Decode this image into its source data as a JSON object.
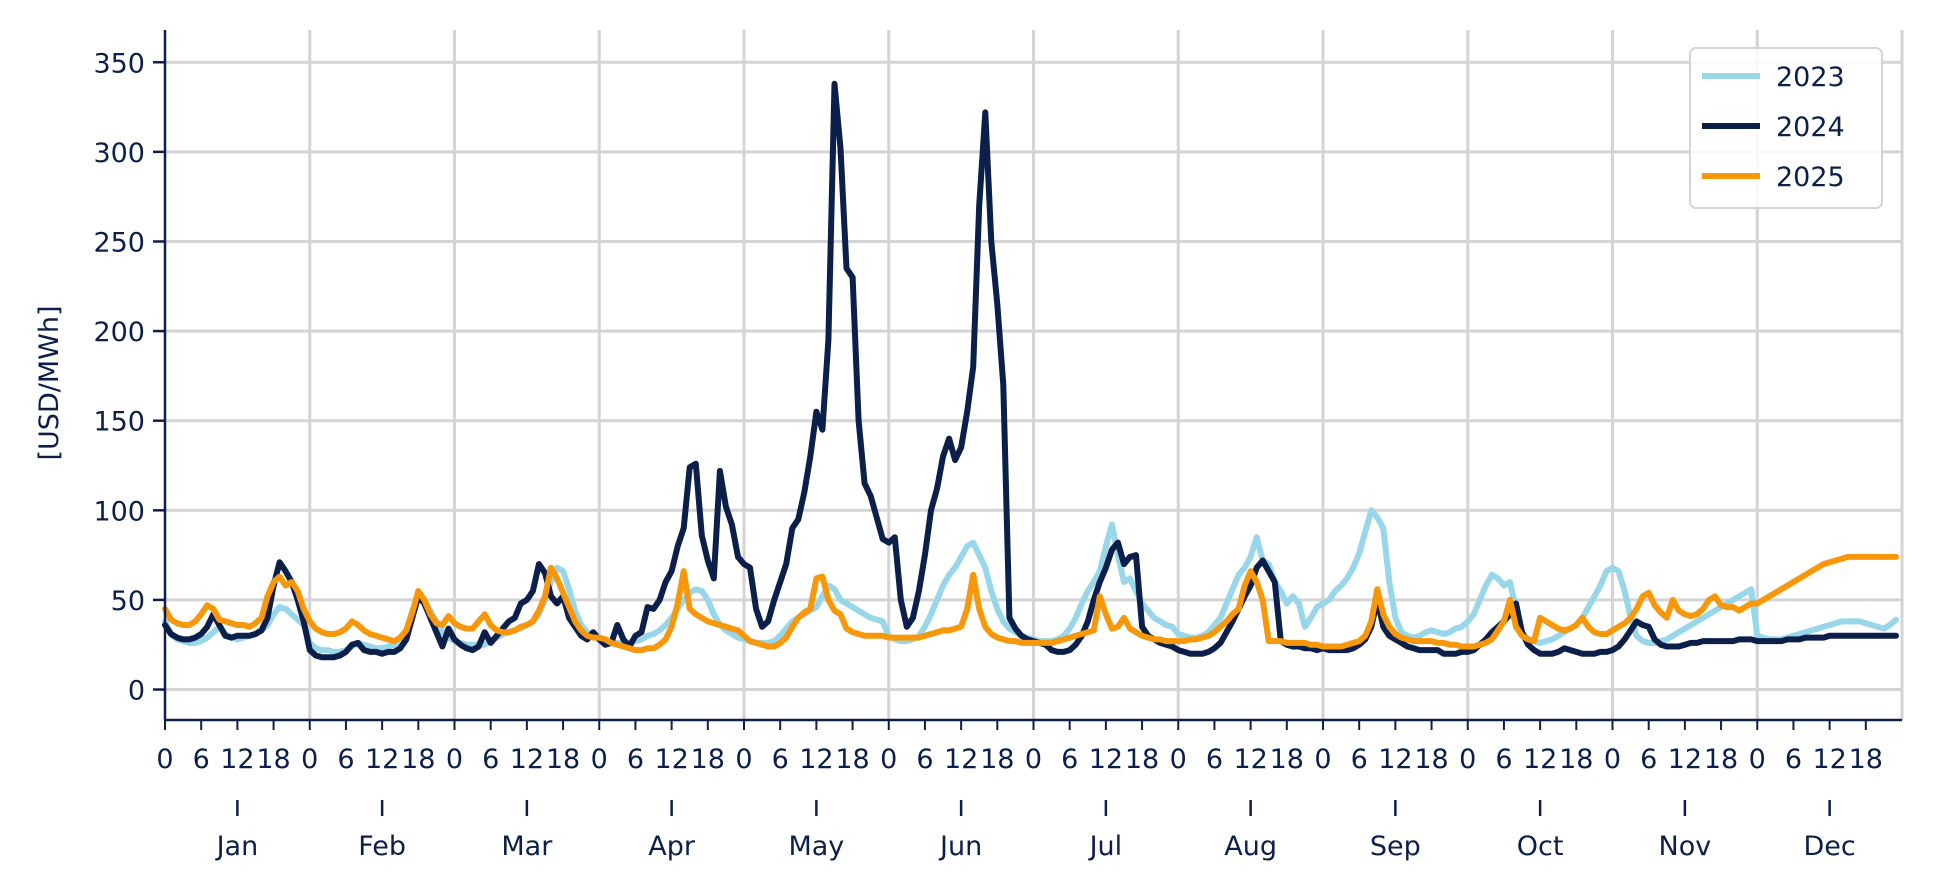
{
  "chart_data": {
    "type": "line",
    "title": "",
    "xlabel": "",
    "ylabel": "[USD/MWh]",
    "ylim": [
      -17,
      368
    ],
    "yticks": [
      0,
      50,
      100,
      150,
      200,
      250,
      300,
      350
    ],
    "hour_tick_labels": [
      "0",
      "6",
      "12",
      "18"
    ],
    "months": [
      "Jan",
      "Feb",
      "Mar",
      "Apr",
      "May",
      "Jun",
      "Jul",
      "Aug",
      "Sep",
      "Oct",
      "Nov",
      "Dec"
    ],
    "grid": true,
    "legend_position": "top-right",
    "x_description": "hour of day (0–23) within each month, 24 points per month, 288 points per series",
    "series": [
      {
        "name": "2023",
        "color": "#98d6ea",
        "values": [
          38,
          31,
          28,
          27,
          26,
          26,
          27,
          29,
          32,
          35,
          31,
          29,
          28,
          29,
          30,
          31,
          33,
          36,
          42,
          46,
          45,
          42,
          39,
          36,
          26,
          23,
          22,
          22,
          21,
          21,
          22,
          24,
          26,
          25,
          24,
          23,
          23,
          24,
          25,
          27,
          33,
          44,
          52,
          50,
          44,
          38,
          32,
          29,
          27,
          26,
          25,
          25,
          25,
          25,
          27,
          29,
          31,
          32,
          33,
          34,
          36,
          38,
          42,
          50,
          60,
          68,
          66,
          56,
          44,
          36,
          32,
          30,
          28,
          27,
          26,
          26,
          26,
          26,
          27,
          28,
          30,
          31,
          33,
          36,
          40,
          45,
          50,
          54,
          56,
          55,
          50,
          42,
          36,
          33,
          31,
          29,
          28,
          27,
          26,
          26,
          26,
          27,
          30,
          34,
          38,
          40,
          42,
          44,
          46,
          52,
          58,
          56,
          50,
          48,
          46,
          44,
          42,
          40,
          39,
          38,
          30,
          28,
          27,
          27,
          28,
          30,
          35,
          42,
          50,
          58,
          64,
          68,
          74,
          80,
          82,
          75,
          68,
          55,
          45,
          38,
          34,
          32,
          30,
          29,
          28,
          27,
          27,
          27,
          28,
          30,
          34,
          40,
          48,
          55,
          60,
          66,
          80,
          92,
          75,
          60,
          62,
          55,
          48,
          44,
          40,
          38,
          36,
          35,
          31,
          30,
          29,
          29,
          30,
          32,
          36,
          40,
          48,
          56,
          64,
          68,
          74,
          85,
          72,
          70,
          60,
          55,
          48,
          52,
          48,
          35,
          40,
          46,
          48,
          50,
          55,
          58,
          62,
          68,
          76,
          88,
          100,
          96,
          90,
          60,
          40,
          32,
          30,
          29,
          30,
          32,
          33,
          32,
          31,
          32,
          34,
          35,
          38,
          42,
          50,
          58,
          64,
          62,
          58,
          60,
          45,
          32,
          28,
          27,
          26,
          27,
          28,
          30,
          32,
          34,
          36,
          40,
          46,
          52,
          58,
          66,
          68,
          66,
          55,
          40,
          30,
          27,
          26,
          26,
          27,
          28,
          30,
          32,
          34,
          36,
          38,
          40,
          42,
          44,
          46,
          48,
          50,
          52,
          54,
          56,
          30,
          29,
          28,
          28,
          28,
          29,
          30,
          31,
          32,
          33,
          34,
          35,
          36,
          37,
          38,
          38,
          38,
          38,
          37,
          36,
          35,
          34,
          36,
          39
        ]
      },
      {
        "name": "2024",
        "color": "#0c1f4a",
        "values": [
          36,
          31,
          29,
          28,
          28,
          29,
          31,
          35,
          42,
          36,
          30,
          29,
          30,
          30,
          30,
          31,
          33,
          40,
          58,
          71,
          66,
          60,
          50,
          38,
          22,
          19,
          18,
          18,
          18,
          19,
          21,
          25,
          26,
          22,
          21,
          21,
          20,
          21,
          21,
          23,
          28,
          40,
          52,
          48,
          40,
          32,
          24,
          34,
          28,
          25,
          23,
          22,
          24,
          32,
          26,
          30,
          34,
          38,
          40,
          48,
          50,
          55,
          70,
          65,
          52,
          48,
          52,
          40,
          35,
          30,
          28,
          32,
          28,
          25,
          26,
          36,
          28,
          24,
          30,
          32,
          46,
          45,
          50,
          60,
          66,
          80,
          90,
          124,
          126,
          86,
          72,
          62,
          122,
          102,
          92,
          74,
          70,
          68,
          45,
          35,
          38,
          50,
          60,
          70,
          90,
          95,
          110,
          130,
          155,
          145,
          195,
          338,
          302,
          235,
          230,
          150,
          115,
          108,
          96,
          84,
          82,
          85,
          50,
          35,
          40,
          55,
          75,
          100,
          112,
          130,
          140,
          128,
          135,
          155,
          180,
          270,
          322,
          250,
          215,
          170,
          40,
          34,
          30,
          28,
          27,
          26,
          25,
          22,
          21,
          21,
          22,
          25,
          30,
          38,
          50,
          60,
          68,
          78,
          82,
          70,
          74,
          75,
          35,
          30,
          28,
          26,
          25,
          24,
          22,
          21,
          20,
          20,
          20,
          21,
          23,
          26,
          32,
          38,
          45,
          52,
          58,
          68,
          72,
          66,
          60,
          27,
          25,
          24,
          24,
          23,
          23,
          22,
          23,
          22,
          22,
          22,
          22,
          23,
          25,
          28,
          35,
          50,
          35,
          30,
          28,
          26,
          24,
          23,
          22,
          22,
          22,
          22,
          20,
          20,
          20,
          21,
          21,
          22,
          25,
          28,
          32,
          35,
          38,
          42,
          48,
          32,
          25,
          22,
          20,
          20,
          20,
          21,
          23,
          22,
          21,
          20,
          20,
          20,
          21,
          21,
          22,
          24,
          28,
          33,
          38,
          36,
          35,
          28,
          25,
          24,
          24,
          24,
          25,
          26,
          26,
          27,
          27,
          27,
          27,
          27,
          27,
          28,
          28,
          28,
          27,
          27,
          27,
          27,
          27,
          28,
          28,
          28,
          29,
          29,
          29,
          29,
          30,
          30,
          30,
          30,
          30,
          30,
          30,
          30,
          30,
          30,
          30,
          30
        ]
      },
      {
        "name": "2025",
        "color": "#f7980c",
        "values": [
          45,
          39,
          37,
          36,
          36,
          38,
          42,
          47,
          45,
          39,
          38,
          37,
          36,
          36,
          35,
          37,
          40,
          52,
          60,
          63,
          58,
          60,
          55,
          45,
          38,
          34,
          32,
          31,
          31,
          32,
          34,
          38,
          36,
          33,
          31,
          30,
          29,
          28,
          27,
          29,
          33,
          43,
          55,
          50,
          42,
          37,
          36,
          41,
          37,
          35,
          34,
          34,
          38,
          42,
          36,
          33,
          32,
          32,
          33,
          35,
          36,
          38,
          44,
          52,
          68,
          62,
          54,
          46,
          38,
          33,
          30,
          29,
          29,
          28,
          26,
          25,
          24,
          23,
          22,
          22,
          23,
          23,
          25,
          28,
          35,
          48,
          66,
          45,
          42,
          40,
          38,
          37,
          36,
          35,
          34,
          33,
          30,
          27,
          26,
          25,
          24,
          24,
          26,
          29,
          35,
          40,
          43,
          45,
          62,
          63,
          50,
          44,
          42,
          34,
          32,
          31,
          30,
          30,
          30,
          30,
          29,
          29,
          29,
          29,
          29,
          29,
          30,
          31,
          32,
          33,
          33,
          34,
          35,
          45,
          64,
          45,
          35,
          31,
          29,
          28,
          27,
          27,
          26,
          26,
          26,
          26,
          26,
          26,
          27,
          28,
          29,
          30,
          31,
          32,
          33,
          52,
          42,
          34,
          35,
          40,
          34,
          32,
          30,
          29,
          28,
          28,
          27,
          27,
          27,
          27,
          28,
          28,
          29,
          30,
          32,
          35,
          38,
          42,
          45,
          58,
          66,
          60,
          50,
          27,
          27,
          27,
          26,
          26,
          26,
          26,
          25,
          25,
          24,
          24,
          24,
          24,
          25,
          26,
          27,
          30,
          38,
          56,
          42,
          35,
          31,
          29,
          28,
          27,
          27,
          27,
          27,
          26,
          26,
          25,
          25,
          24,
          24,
          24,
          25,
          26,
          28,
          33,
          38,
          50,
          35,
          30,
          28,
          27,
          40,
          38,
          36,
          34,
          33,
          34,
          36,
          40,
          35,
          32,
          31,
          31,
          33,
          35,
          37,
          40,
          45,
          52,
          54,
          47,
          43,
          40,
          50,
          44,
          42,
          41,
          42,
          45,
          50,
          52,
          47,
          46,
          46,
          44,
          46,
          48,
          48,
          50,
          52,
          54,
          56,
          58,
          60,
          62,
          64,
          66,
          68,
          70,
          71,
          72,
          73,
          74,
          74,
          74,
          74,
          74,
          74,
          74,
          74,
          74
        ]
      }
    ]
  }
}
